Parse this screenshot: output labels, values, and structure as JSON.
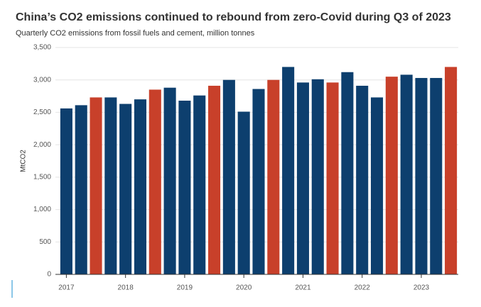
{
  "chart_data": {
    "type": "bar",
    "title": "China’s CO2 emissions continued to rebound from zero-Covid during Q3 of 2023",
    "subtitle": "Quarterly CO2 emissions from fossil fuels and cement, million tonnes",
    "y_label": "MtCO2",
    "categories": [
      "2017",
      null,
      null,
      null,
      "2018",
      null,
      null,
      null,
      "2019",
      null,
      null,
      null,
      "2020",
      null,
      null,
      null,
      "2021",
      null,
      null,
      null,
      "2022",
      null,
      null,
      null,
      "2023",
      null,
      null
    ],
    "values": [
      2560,
      2610,
      2730,
      2730,
      2630,
      2700,
      2850,
      2880,
      2680,
      2760,
      2910,
      3000,
      2510,
      2860,
      3000,
      3200,
      2960,
      3010,
      2960,
      3120,
      2910,
      2730,
      3050,
      3080,
      3030,
      3030,
      3200
    ],
    "colors": [
      "#0d3f6e",
      "#0d3f6e",
      "#c8402a",
      "#0d3f6e",
      "#0d3f6e",
      "#0d3f6e",
      "#c8402a",
      "#0d3f6e",
      "#0d3f6e",
      "#0d3f6e",
      "#c8402a",
      "#0d3f6e",
      "#0d3f6e",
      "#0d3f6e",
      "#c8402a",
      "#0d3f6e",
      "#0d3f6e",
      "#0d3f6e",
      "#c8402a",
      "#0d3f6e",
      "#0d3f6e",
      "#0d3f6e",
      "#c8402a",
      "#0d3f6e",
      "#0d3f6e",
      "#0d3f6e",
      "#c8402a"
    ],
    "ylim": [
      0,
      3500
    ],
    "yticks": [
      0,
      500,
      {
        "value": 1000,
        "label": "1,000"
      },
      {
        "value": 1500,
        "label": "1,500"
      },
      {
        "value": 2000,
        "label": "2,000"
      },
      {
        "value": 2500,
        "label": "2,500"
      },
      {
        "value": 3000,
        "label": "3,000"
      },
      {
        "value": 3500,
        "label": "3,500"
      }
    ],
    "grid": true
  }
}
